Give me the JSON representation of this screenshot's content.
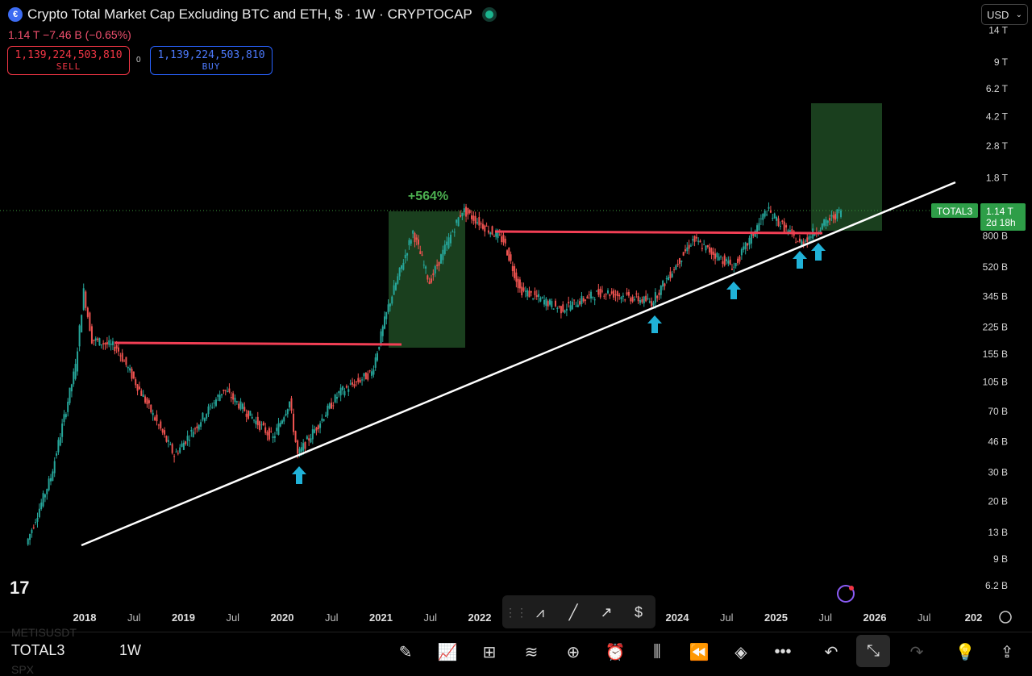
{
  "header": {
    "title": "Crypto Total Market Cap Excluding BTC and ETH, $ · 1W · CRYPTOCAP",
    "quote": "1.14 T  −7.46 B (−0.65%)",
    "sell": {
      "value": "1,139,224,503,810",
      "label": "SELL"
    },
    "buy": {
      "value": "1,139,224,503,810",
      "label": "BUY"
    },
    "spread": "0",
    "currency": "USD"
  },
  "chart_data": {
    "type": "candlestick",
    "symbol": "TOTAL3",
    "y_scale": "log",
    "y_ticks": [
      "14 T",
      "9 T",
      "6.2 T",
      "4.2 T",
      "2.8 T",
      "1.8 T",
      "800 B",
      "520 B",
      "345 B",
      "225 B",
      "155 B",
      "105 B",
      "70 B",
      "46 B",
      "30 B",
      "20 B",
      "13 B",
      "9 B",
      "6.2 B"
    ],
    "x_ticks": [
      "2018",
      "Jul",
      "2019",
      "Jul",
      "2020",
      "Jul",
      "2021",
      "Jul",
      "2022",
      "2024",
      "Jul",
      "2025",
      "Jul",
      "2026",
      "Jul",
      "202"
    ],
    "price_path": [
      {
        "t": "2017-06",
        "v": 11
      },
      {
        "t": "2017-09",
        "v": 28
      },
      {
        "t": "2017-12",
        "v": 130
      },
      {
        "t": "2018-01",
        "v": 370
      },
      {
        "t": "2018-02",
        "v": 190
      },
      {
        "t": "2018-05",
        "v": 170
      },
      {
        "t": "2018-08",
        "v": 90
      },
      {
        "t": "2018-12",
        "v": 38
      },
      {
        "t": "2019-06",
        "v": 95
      },
      {
        "t": "2019-12",
        "v": 48
      },
      {
        "t": "2020-02",
        "v": 80
      },
      {
        "t": "2020-03",
        "v": 38
      },
      {
        "t": "2020-08",
        "v": 90
      },
      {
        "t": "2020-12",
        "v": 120
      },
      {
        "t": "2021-02",
        "v": 300
      },
      {
        "t": "2021-05",
        "v": 850
      },
      {
        "t": "2021-07",
        "v": 420
      },
      {
        "t": "2021-11",
        "v": 1150
      },
      {
        "t": "2022-04",
        "v": 750
      },
      {
        "t": "2022-06",
        "v": 380
      },
      {
        "t": "2022-11",
        "v": 290
      },
      {
        "t": "2023-04",
        "v": 370
      },
      {
        "t": "2023-10",
        "v": 320
      },
      {
        "t": "2024-03",
        "v": 760
      },
      {
        "t": "2024-08",
        "v": 520
      },
      {
        "t": "2024-12",
        "v": 1150
      },
      {
        "t": "2025-04",
        "v": 720
      },
      {
        "t": "2025-09",
        "v": 1140
      }
    ],
    "last_value_label": "1.14 T",
    "countdown": "2d 18h",
    "annotations": {
      "gain_label": "+564%"
    }
  },
  "bottom": {
    "symbol": "TOTAL3",
    "timeframe": "1W",
    "ghost_top": "METISUSDT",
    "ghost_bottom": "SPX"
  }
}
